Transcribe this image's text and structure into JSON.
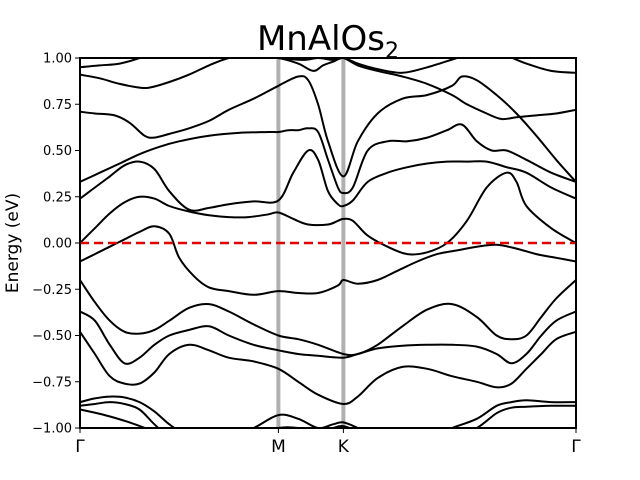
{
  "chart_data": {
    "type": "line",
    "title": "MnAlOs",
    "title_subscript": "2",
    "xlabel": "",
    "ylabel": "Energy (eV)",
    "ylim": [
      -1.0,
      1.0
    ],
    "xlim": [
      0,
      1
    ],
    "y_tick_labels": [
      "1.00",
      "0.75",
      "0.50",
      "0.25",
      "0.00",
      "−0.25",
      "−0.50",
      "−0.75",
      "−1.00"
    ],
    "y_ticks": [
      1.0,
      0.75,
      0.5,
      0.25,
      0.0,
      -0.25,
      -0.5,
      -0.75,
      -1.0
    ],
    "k_points": [
      {
        "label": "Γ",
        "x": 0.0
      },
      {
        "label": "M",
        "x": 0.4
      },
      {
        "label": "K",
        "x": 0.531
      },
      {
        "label": "Γ",
        "x": 1.0
      }
    ],
    "fermi_level": 0.0,
    "colors": {
      "bands": "#000000",
      "fermi": "#e60000",
      "kline": "#b0b0b0"
    },
    "series": [
      {
        "x": [
          0.0,
          0.04,
          0.08,
          0.12,
          0.17,
          0.22,
          0.28,
          0.34,
          0.4,
          0.44,
          0.47,
          0.49,
          0.51,
          0.531,
          0.56,
          0.6,
          0.65,
          0.7,
          0.76,
          0.8,
          0.85,
          0.9,
          0.95,
          1.0
        ],
        "y": [
          0.95,
          0.96,
          0.97,
          1.0,
          1.05,
          1.1,
          1.05,
          1.02,
          1.0,
          0.97,
          0.93,
          0.96,
          0.98,
          1.0,
          0.97,
          0.94,
          0.92,
          0.95,
          1.0,
          1.03,
          1.02,
          0.97,
          0.93,
          0.92
        ]
      },
      {
        "x": [
          0.0,
          0.04,
          0.08,
          0.12,
          0.14,
          0.18,
          0.22,
          0.26,
          0.3,
          0.35,
          0.4,
          0.45,
          0.48,
          0.51,
          0.531,
          0.56,
          0.6,
          0.65,
          0.7,
          0.75,
          0.78,
          0.82,
          0.85,
          0.88,
          0.92,
          0.96,
          1.0
        ],
        "y": [
          0.91,
          0.89,
          0.86,
          0.84,
          0.84,
          0.87,
          0.91,
          0.96,
          1.0,
          1.02,
          1.0,
          0.99,
          1.0,
          0.99,
          1.0,
          0.96,
          0.93,
          0.9,
          0.86,
          0.8,
          0.75,
          0.7,
          0.67,
          0.68,
          0.69,
          0.7,
          0.72
        ]
      },
      {
        "x": [
          0.0,
          0.03,
          0.07,
          0.1,
          0.13,
          0.15,
          0.18,
          0.22,
          0.26,
          0.3,
          0.35,
          0.4,
          0.44,
          0.46,
          0.48,
          0.5,
          0.531,
          0.56,
          0.6,
          0.65,
          0.7,
          0.75,
          0.77,
          0.8,
          0.84,
          0.88,
          0.92,
          0.96,
          1.0
        ],
        "y": [
          0.71,
          0.7,
          0.69,
          0.65,
          0.58,
          0.57,
          0.59,
          0.62,
          0.66,
          0.72,
          0.78,
          0.85,
          0.9,
          0.88,
          0.75,
          0.55,
          0.36,
          0.55,
          0.7,
          0.78,
          0.8,
          0.85,
          0.9,
          0.88,
          0.8,
          0.7,
          0.58,
          0.45,
          0.33
        ]
      },
      {
        "x": [
          0.0,
          0.04,
          0.08,
          0.12,
          0.16,
          0.2,
          0.26,
          0.32,
          0.38,
          0.4,
          0.42,
          0.44,
          0.46,
          0.48,
          0.5,
          0.52,
          0.531,
          0.55,
          0.58,
          0.62,
          0.66,
          0.7,
          0.74,
          0.77,
          0.8,
          0.83,
          0.86,
          0.9,
          0.95,
          1.0
        ],
        "y": [
          0.33,
          0.38,
          0.43,
          0.48,
          0.52,
          0.55,
          0.58,
          0.595,
          0.6,
          0.6,
          0.61,
          0.61,
          0.62,
          0.6,
          0.45,
          0.3,
          0.27,
          0.3,
          0.5,
          0.55,
          0.55,
          0.57,
          0.61,
          0.64,
          0.55,
          0.5,
          0.5,
          0.45,
          0.38,
          0.33
        ]
      },
      {
        "x": [
          0.0,
          0.03,
          0.06,
          0.09,
          0.12,
          0.15,
          0.18,
          0.22,
          0.26,
          0.3,
          0.35,
          0.4,
          0.43,
          0.46,
          0.48,
          0.5,
          0.52,
          0.531,
          0.55,
          0.58,
          0.62,
          0.66,
          0.7,
          0.74,
          0.78,
          0.82,
          0.86,
          0.9,
          0.95,
          1.0
        ],
        "y": [
          0.24,
          0.3,
          0.36,
          0.42,
          0.44,
          0.4,
          0.28,
          0.18,
          0.19,
          0.21,
          0.225,
          0.23,
          0.38,
          0.5,
          0.45,
          0.28,
          0.21,
          0.2,
          0.23,
          0.33,
          0.38,
          0.41,
          0.43,
          0.44,
          0.44,
          0.44,
          0.41,
          0.38,
          0.3,
          0.24
        ]
      },
      {
        "x": [
          0.0,
          0.03,
          0.06,
          0.09,
          0.12,
          0.15,
          0.18,
          0.22,
          0.26,
          0.3,
          0.34,
          0.38,
          0.4,
          0.43,
          0.46,
          0.5,
          0.52,
          0.531,
          0.55,
          0.58,
          0.62,
          0.66,
          0.7,
          0.74,
          0.78,
          0.82,
          0.86,
          0.88,
          0.9,
          0.95,
          1.0
        ],
        "y": [
          0.0,
          0.08,
          0.16,
          0.22,
          0.25,
          0.24,
          0.2,
          0.17,
          0.15,
          0.14,
          0.14,
          0.155,
          0.165,
          0.13,
          0.1,
          0.1,
          0.12,
          0.13,
          0.12,
          0.04,
          -0.02,
          -0.06,
          -0.05,
          0.0,
          0.12,
          0.3,
          0.38,
          0.33,
          0.2,
          0.08,
          0.0
        ]
      },
      {
        "x": [
          0.0,
          0.03,
          0.06,
          0.09,
          0.12,
          0.15,
          0.18,
          0.2,
          0.23,
          0.26,
          0.3,
          0.35,
          0.4,
          0.44,
          0.48,
          0.52,
          0.531,
          0.56,
          0.6,
          0.64,
          0.68,
          0.72,
          0.76,
          0.8,
          0.84,
          0.88,
          0.92,
          0.96,
          1.0
        ],
        "y": [
          -0.1,
          -0.06,
          -0.02,
          0.02,
          0.06,
          0.09,
          0.05,
          -0.08,
          -0.18,
          -0.24,
          -0.26,
          -0.28,
          -0.26,
          -0.27,
          -0.27,
          -0.23,
          -0.2,
          -0.22,
          -0.2,
          -0.15,
          -0.1,
          -0.06,
          -0.04,
          -0.02,
          -0.01,
          -0.03,
          -0.06,
          -0.08,
          -0.1
        ]
      },
      {
        "x": [
          0.0,
          0.03,
          0.06,
          0.09,
          0.12,
          0.15,
          0.18,
          0.22,
          0.26,
          0.3,
          0.35,
          0.4,
          0.44,
          0.48,
          0.531,
          0.56,
          0.6,
          0.65,
          0.7,
          0.75,
          0.8,
          0.84,
          0.87,
          0.9,
          0.93,
          0.96,
          1.0
        ],
        "y": [
          -0.2,
          -0.32,
          -0.42,
          -0.48,
          -0.49,
          -0.47,
          -0.42,
          -0.35,
          -0.33,
          -0.37,
          -0.44,
          -0.5,
          -0.52,
          -0.55,
          -0.6,
          -0.6,
          -0.55,
          -0.45,
          -0.36,
          -0.33,
          -0.4,
          -0.5,
          -0.52,
          -0.5,
          -0.4,
          -0.3,
          -0.2
        ]
      },
      {
        "x": [
          0.0,
          0.03,
          0.06,
          0.09,
          0.12,
          0.15,
          0.18,
          0.22,
          0.26,
          0.3,
          0.35,
          0.4,
          0.44,
          0.48,
          0.531,
          0.56,
          0.6,
          0.65,
          0.7,
          0.75,
          0.8,
          0.84,
          0.87,
          0.9,
          0.93,
          0.96,
          1.0
        ],
        "y": [
          -0.37,
          -0.42,
          -0.55,
          -0.65,
          -0.62,
          -0.55,
          -0.5,
          -0.47,
          -0.45,
          -0.5,
          -0.55,
          -0.58,
          -0.6,
          -0.61,
          -0.62,
          -0.6,
          -0.57,
          -0.555,
          -0.55,
          -0.55,
          -0.56,
          -0.6,
          -0.65,
          -0.6,
          -0.5,
          -0.42,
          -0.37
        ]
      },
      {
        "x": [
          0.0,
          0.03,
          0.06,
          0.09,
          0.12,
          0.15,
          0.18,
          0.22,
          0.26,
          0.3,
          0.35,
          0.4,
          0.44,
          0.48,
          0.531,
          0.56,
          0.6,
          0.65,
          0.7,
          0.75,
          0.8,
          0.84,
          0.87,
          0.9,
          0.93,
          0.96,
          1.0
        ],
        "y": [
          -0.48,
          -0.6,
          -0.72,
          -0.76,
          -0.76,
          -0.7,
          -0.6,
          -0.55,
          -0.58,
          -0.62,
          -0.64,
          -0.68,
          -0.75,
          -0.82,
          -0.87,
          -0.83,
          -0.73,
          -0.67,
          -0.68,
          -0.72,
          -0.75,
          -0.78,
          -0.76,
          -0.68,
          -0.6,
          -0.52,
          -0.48
        ]
      },
      {
        "x": [
          0.0,
          0.03,
          0.06,
          0.09,
          0.12,
          0.15,
          0.18,
          0.22,
          0.26,
          0.3,
          0.35,
          0.4,
          0.44,
          0.48,
          0.51,
          0.531,
          0.56,
          0.6,
          0.65,
          0.7,
          0.75,
          0.8,
          0.84,
          0.87,
          0.9,
          0.95,
          1.0
        ],
        "y": [
          -0.86,
          -0.84,
          -0.83,
          -0.835,
          -0.86,
          -0.91,
          -0.98,
          -1.05,
          -1.08,
          -1.05,
          -1.0,
          -0.93,
          -0.95,
          -1.0,
          -0.98,
          -0.97,
          -1.0,
          -1.05,
          -1.1,
          -1.05,
          -1.0,
          -0.95,
          -0.88,
          -0.86,
          -0.85,
          -0.86,
          -0.86
        ]
      },
      {
        "x": [
          0.0,
          0.03,
          0.06,
          0.09,
          0.12,
          0.15,
          0.18,
          0.22,
          0.26,
          0.3,
          0.35,
          0.4,
          0.44,
          0.48,
          0.51,
          0.531,
          0.56,
          0.6,
          0.65,
          0.7,
          0.75,
          0.8,
          0.84,
          0.87,
          0.9,
          0.95,
          1.0
        ],
        "y": [
          -0.88,
          -0.87,
          -0.86,
          -0.87,
          -0.9,
          -0.98,
          -1.05,
          -1.1,
          -1.15,
          -1.1,
          -1.05,
          -1.0,
          -1.0,
          -1.03,
          -1.0,
          -0.99,
          -1.02,
          -1.08,
          -1.15,
          -1.1,
          -1.05,
          -1.0,
          -0.92,
          -0.89,
          -0.885,
          -0.88,
          -0.88
        ]
      },
      {
        "x": [
          0.0,
          0.05,
          0.1,
          0.15,
          0.2,
          0.25,
          0.3
        ],
        "y": [
          -0.9,
          -0.93,
          -0.97,
          -1.02,
          -1.08,
          -1.1,
          -1.12
        ]
      }
    ]
  }
}
